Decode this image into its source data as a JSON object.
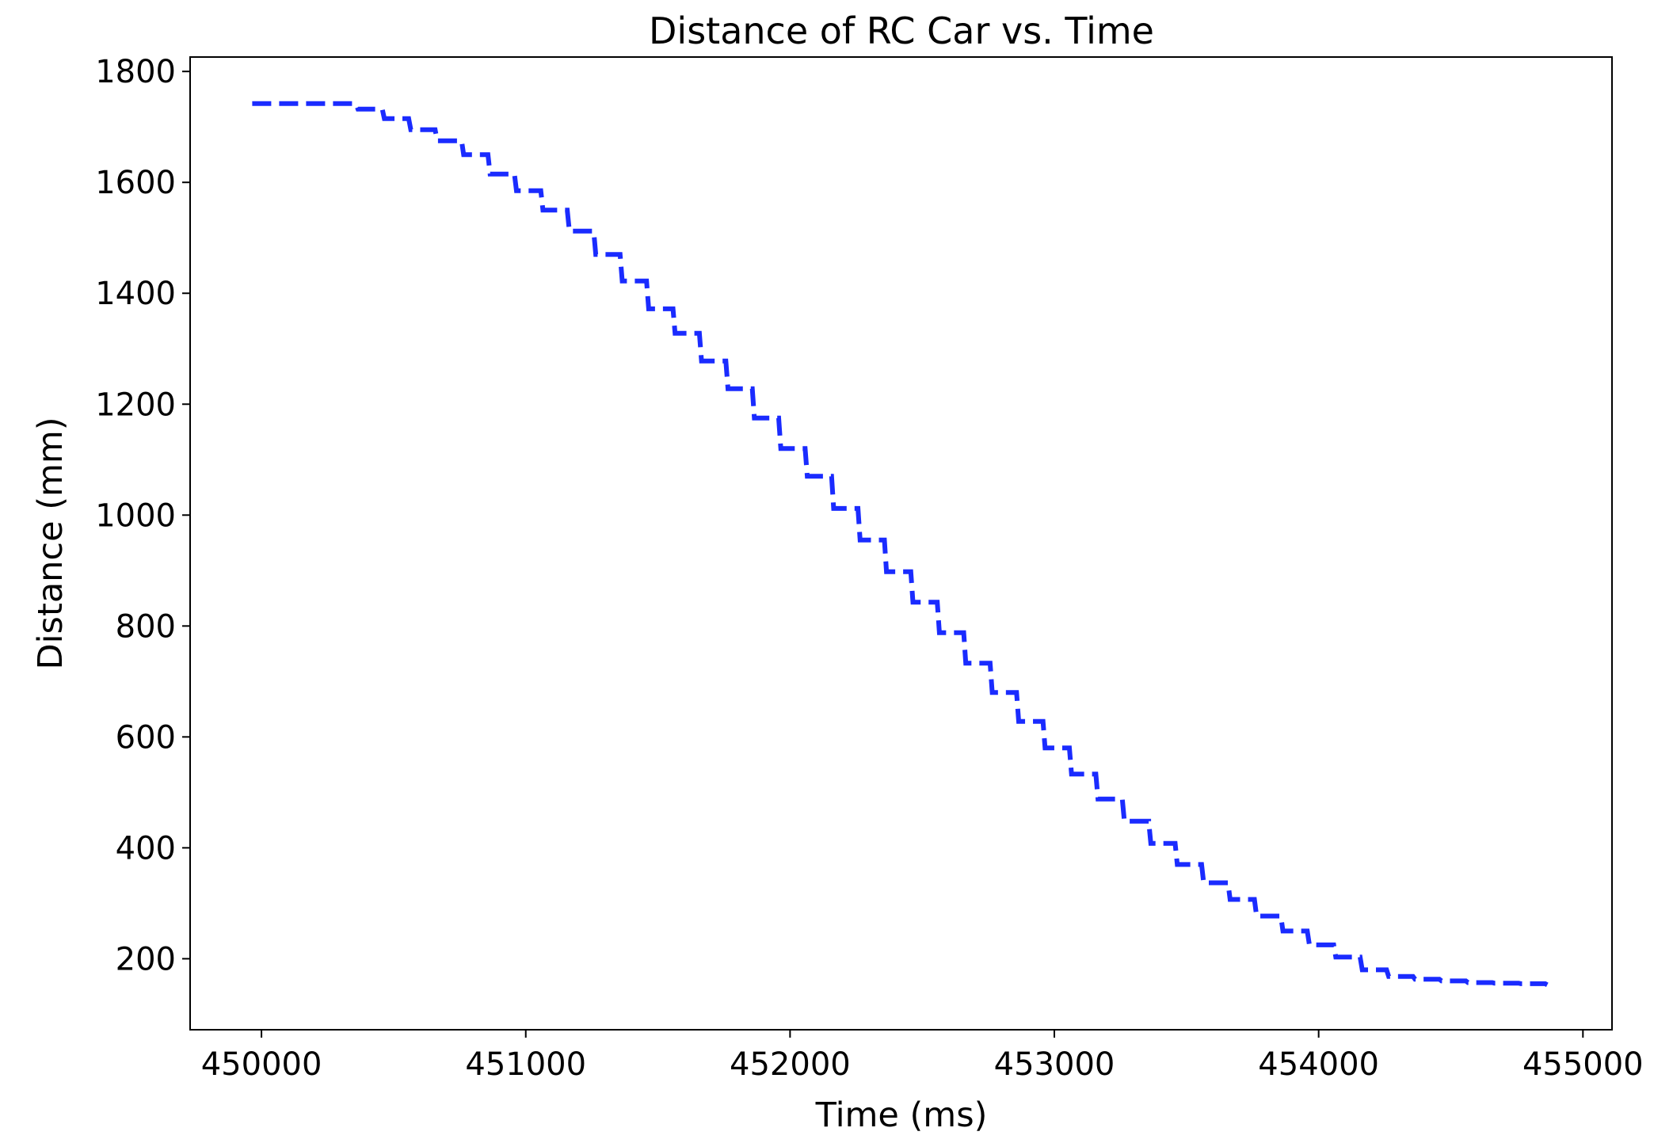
{
  "chart_data": {
    "type": "line",
    "title": "Distance of RC Car vs. Time",
    "xlabel": "Time (ms)",
    "ylabel": "Distance (mm)",
    "xlim": [
      449730,
      455110
    ],
    "ylim": [
      72,
      1826
    ],
    "xticks": [
      450000,
      451000,
      452000,
      453000,
      454000,
      455000
    ],
    "yticks": [
      200,
      400,
      600,
      800,
      1000,
      1200,
      1400,
      1600,
      1800
    ],
    "grid": false,
    "line_style": "dashed",
    "line_color": "#1a2bff",
    "series": [
      {
        "x": [
          449965,
          450065,
          450165,
          450265,
          450365,
          450465,
          450565,
          450665,
          450765,
          450865,
          450965,
          451065,
          451165,
          451265,
          451365,
          451465,
          451565,
          451665,
          451765,
          451865,
          451965,
          452065,
          452165,
          452265,
          452365,
          452465,
          452565,
          452665,
          452765,
          452865,
          452965,
          453065,
          453165,
          453265,
          453365,
          453465,
          453565,
          453665,
          453765,
          453865,
          453965,
          454065,
          454165,
          454265,
          454365,
          454465,
          454565,
          454665,
          454765,
          454865
        ],
        "y": [
          1742,
          1742,
          1742,
          1742,
          1732,
          1715,
          1695,
          1675,
          1650,
          1615,
          1585,
          1550,
          1512,
          1470,
          1422,
          1372,
          1328,
          1278,
          1228,
          1175,
          1120,
          1070,
          1012,
          955,
          898,
          843,
          788,
          733,
          680,
          628,
          580,
          533,
          488,
          448,
          408,
          370,
          337,
          307,
          277,
          250,
          225,
          203,
          180,
          168,
          163,
          160,
          157,
          156,
          155,
          153
        ]
      }
    ]
  }
}
